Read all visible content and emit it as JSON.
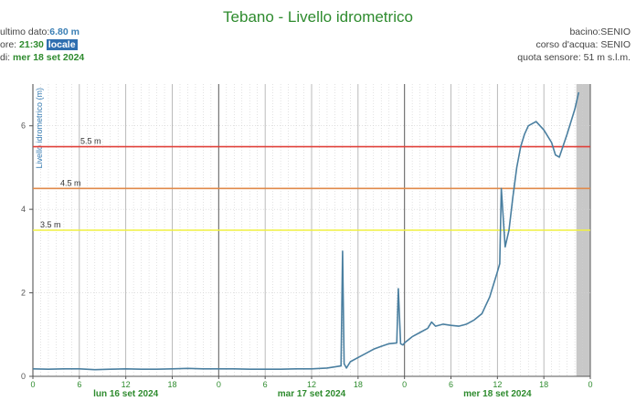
{
  "header": {
    "title": "Tebano - Livello idrometrico",
    "last_label": "ultimo dato:",
    "last_value": "6.80 m",
    "time_label": "ore:",
    "time_value": "21:30",
    "time_badge": "locale",
    "date_label": "di:",
    "date_value": "mer 18 set 2024",
    "basin": "bacino:SENIO",
    "river": "corso d'acqua: SENIO",
    "sensor": "quota sensore: 51 m s.l.m."
  },
  "chart_data": {
    "type": "line",
    "ylabel": "Livello idrometrico (m)",
    "ylim": [
      0,
      7
    ],
    "yticks": [
      0,
      2,
      4,
      6
    ],
    "x_unit": "hours since lun 16 set 2024 00:00",
    "xlim": [
      0,
      72
    ],
    "x_tick_labels": [
      "0",
      "6",
      "12",
      "18",
      "0",
      "6",
      "12",
      "18",
      "0",
      "6",
      "12",
      "18",
      "0"
    ],
    "day_labels": [
      {
        "x": 12,
        "label": "lun 16 set 2024"
      },
      {
        "x": 36,
        "label": "mar 17 set 2024"
      },
      {
        "x": 60,
        "label": "mer 18 set 2024"
      }
    ],
    "thresholds": [
      {
        "value": 5.5,
        "label": "5.5 m",
        "color": "#e0403a"
      },
      {
        "value": 4.5,
        "label": "4.5 m",
        "color": "#e08a4a"
      },
      {
        "value": 3.5,
        "label": "3.5 m",
        "color": "#f0f040"
      }
    ],
    "series": [
      {
        "color": "#4a7fa0",
        "x": [
          0,
          2,
          4,
          6,
          8,
          10,
          12,
          14,
          16,
          18,
          20,
          22,
          24,
          26,
          28,
          30,
          32,
          34,
          36,
          38,
          39.8,
          40,
          40.2,
          40.5,
          41,
          42,
          43,
          44,
          45,
          46,
          47,
          47.2,
          47.5,
          47.8,
          48,
          49,
          50,
          51,
          51.5,
          52,
          53,
          54,
          55,
          56,
          57,
          58,
          58.5,
          59,
          59.5,
          60,
          60.3,
          60.5,
          61,
          61.5,
          62,
          62.5,
          63,
          63.5,
          64,
          65,
          66,
          67,
          67.5,
          68,
          69,
          70,
          70.5
        ],
        "y": [
          0.18,
          0.17,
          0.18,
          0.18,
          0.16,
          0.17,
          0.18,
          0.17,
          0.17,
          0.18,
          0.19,
          0.18,
          0.18,
          0.18,
          0.17,
          0.17,
          0.17,
          0.18,
          0.18,
          0.2,
          0.25,
          3.0,
          0.3,
          0.2,
          0.35,
          0.45,
          0.55,
          0.65,
          0.72,
          0.78,
          0.8,
          2.1,
          0.78,
          0.75,
          0.8,
          0.95,
          1.05,
          1.15,
          1.3,
          1.2,
          1.25,
          1.22,
          1.2,
          1.25,
          1.35,
          1.5,
          1.7,
          1.9,
          2.2,
          2.5,
          2.7,
          4.5,
          3.1,
          3.5,
          4.3,
          5.0,
          5.5,
          5.8,
          6.0,
          6.1,
          5.9,
          5.6,
          5.3,
          5.25,
          5.8,
          6.4,
          6.8
        ]
      }
    ]
  }
}
